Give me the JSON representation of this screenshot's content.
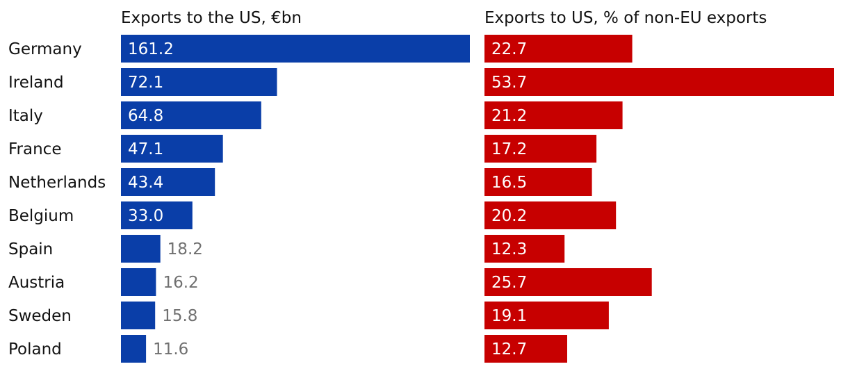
{
  "chart_data": [
    {
      "type": "bar",
      "orientation": "horizontal",
      "title": "Exports to the US, €bn",
      "categories": [
        "Germany",
        "Ireland",
        "Italy",
        "France",
        "Netherlands",
        "Belgium",
        "Spain",
        "Austria",
        "Sweden",
        "Poland"
      ],
      "values": [
        161.2,
        72.1,
        64.8,
        47.1,
        43.4,
        33.0,
        18.2,
        16.2,
        15.8,
        11.6
      ],
      "labels": [
        "161.2",
        "72.1",
        "64.8",
        "47.1",
        "43.4",
        "33.0",
        "18.2",
        "16.2",
        "15.8",
        "11.6"
      ],
      "xlim": [
        0,
        161.2
      ],
      "color": "#0a3ea8",
      "grid": false
    },
    {
      "type": "bar",
      "orientation": "horizontal",
      "title": "Exports to US, % of non-EU exports",
      "categories": [
        "Germany",
        "Ireland",
        "Italy",
        "France",
        "Netherlands",
        "Belgium",
        "Spain",
        "Austria",
        "Sweden",
        "Poland"
      ],
      "values": [
        22.7,
        53.7,
        21.2,
        17.2,
        16.5,
        20.2,
        12.3,
        25.7,
        19.1,
        12.7
      ],
      "labels": [
        "22.7",
        "53.7",
        "21.2",
        "17.2",
        "16.5",
        "20.2",
        "12.3",
        "25.7",
        "19.1",
        "12.7"
      ],
      "xlim": [
        0,
        53.7
      ],
      "color": "#c70000",
      "grid": false
    }
  ]
}
